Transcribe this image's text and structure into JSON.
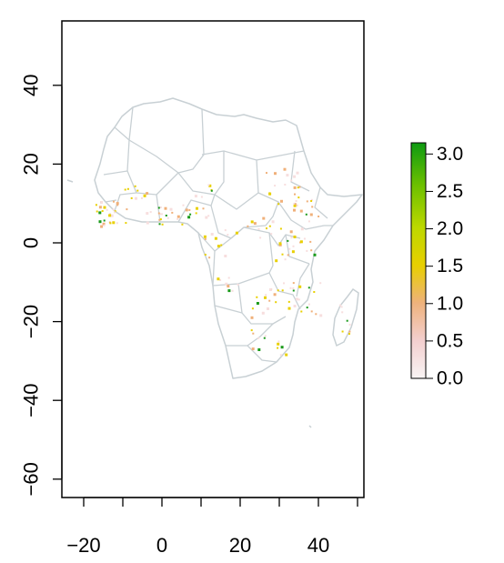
{
  "map": {
    "x_axis": {
      "range": [
        -25,
        52
      ],
      "ticks": [
        -20,
        0,
        20,
        40
      ],
      "minor_ticks": [
        -20,
        -10,
        0,
        10,
        20,
        30,
        40,
        50
      ]
    },
    "y_axis": {
      "range": [
        -65,
        57
      ],
      "ticks": [
        -60,
        -40,
        -20,
        0,
        20,
        40
      ]
    },
    "colors": {
      "border": "#c8d0d4",
      "low": "#f7dede",
      "mid_low": "#f0b07a",
      "mid": "#e8d000",
      "high": "#1a9a1a"
    }
  },
  "legend": {
    "ticks": [
      "3.0",
      "2.5",
      "2.0",
      "1.5",
      "1.0",
      "0.5",
      "0.0"
    ],
    "range": [
      0,
      3.15
    ]
  }
}
